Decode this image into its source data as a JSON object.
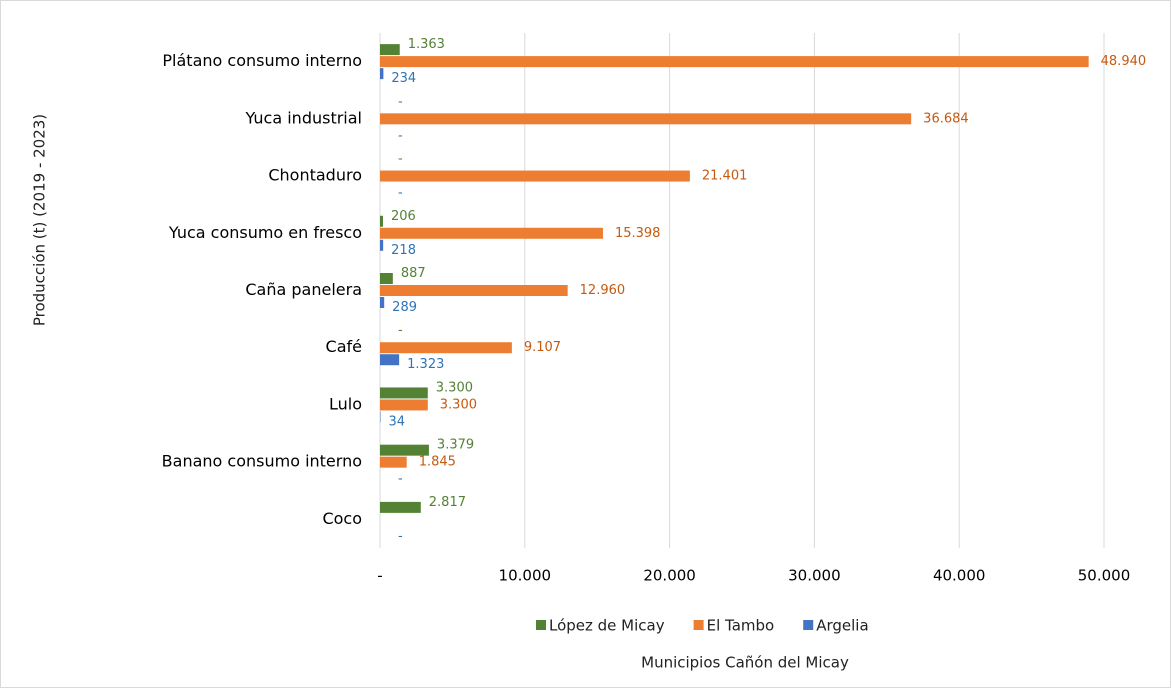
{
  "chart_data": {
    "type": "barh",
    "categories": [
      "Plátano consumo interno",
      "Yuca industrial",
      "Chontaduro",
      "Yuca consumo en fresco",
      "Caña panelera",
      "Café",
      "Lulo",
      "Banano consumo interno",
      "Coco"
    ],
    "series": [
      {
        "name": "López de Micay",
        "color": "#548235",
        "values": [
          1363,
          0,
          0,
          206,
          887,
          0,
          3300,
          3379,
          2817
        ],
        "value_labels": [
          "1.363",
          "-",
          "-",
          "206",
          "887",
          "-",
          "3.300",
          "3.379",
          "2.817"
        ]
      },
      {
        "name": "El Tambo",
        "color": "#ed7d31",
        "values": [
          48940,
          36684,
          21401,
          15398,
          12960,
          9107,
          3300,
          1845,
          null
        ],
        "value_labels": [
          "48.940",
          "36.684",
          "21.401",
          "15.398",
          "12.960",
          "9.107",
          "3.300",
          "1.845",
          null
        ]
      },
      {
        "name": "Argelia",
        "color": "#4472c4",
        "values": [
          234,
          0,
          0,
          218,
          289,
          1323,
          34,
          0,
          0
        ],
        "value_labels": [
          "234",
          "-",
          "-",
          "218",
          "289",
          "1.323",
          "34",
          "-",
          "-"
        ]
      }
    ],
    "xlim": [
      0,
      50000
    ],
    "xticks": [
      {
        "value": 0,
        "label": "-"
      },
      {
        "value": 10000,
        "label": "10.000"
      },
      {
        "value": 20000,
        "label": "20.000"
      },
      {
        "value": 30000,
        "label": "30.000"
      },
      {
        "value": 40000,
        "label": "40.000"
      },
      {
        "value": 50000,
        "label": "50.000"
      }
    ],
    "xlabel": "Municipios Cañón del Micay",
    "ylabel": "Producción (t) (2019 - 2023)",
    "grid": true,
    "legend": "bottom"
  }
}
